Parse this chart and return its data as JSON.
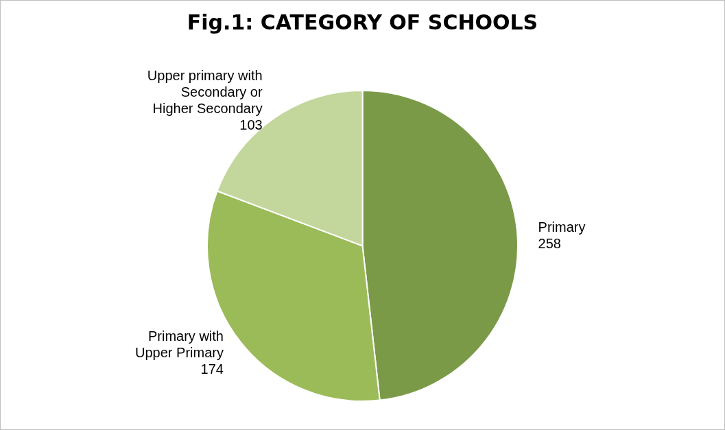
{
  "chart_data": {
    "type": "pie",
    "title": "Fig.1: CATEGORY OF SCHOOLS",
    "categories": [
      "Primary",
      "Primary with Upper Primary",
      "Upper primary with Secondary or Higher Secondary"
    ],
    "values": [
      258,
      174,
      103
    ],
    "colors": [
      "#7a9a48",
      "#9bbb59",
      "#c3d69b"
    ],
    "data_labels": true,
    "legend": false
  }
}
